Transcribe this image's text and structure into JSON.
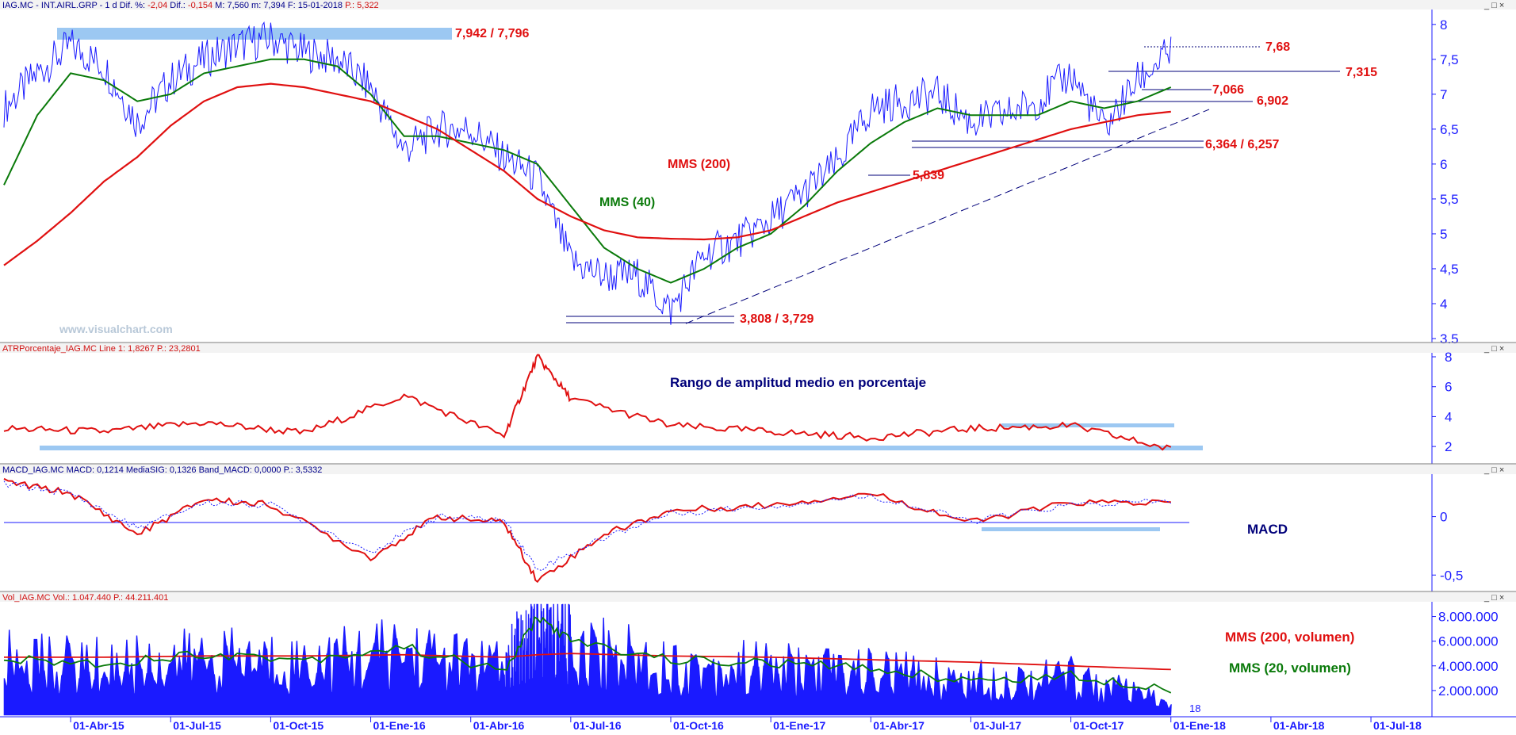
{
  "panels": {
    "price": {
      "header": {
        "segments": [
          {
            "text": "IAG.MC - INT.AIRL.GRP -  1 d  Dif. %: ",
            "color": "#00008b"
          },
          {
            "text": "-2,04",
            "color": "#d01010"
          },
          {
            "text": "  Dif.: ",
            "color": "#00008b"
          },
          {
            "text": "-0,154",
            "color": "#d01010"
          },
          {
            "text": "  M: 7,560  m: 7,394  F: 15-01-2018  ",
            "color": "#00008b"
          },
          {
            "text": "P.: 5,322",
            "color": "#d01010"
          }
        ]
      },
      "watermark": "www.visualchart.com",
      "y_ticks": [
        "8",
        "7,5",
        "7",
        "6,5",
        "6",
        "5,5",
        "5",
        "4,5",
        "4",
        "3,5"
      ],
      "annotations": {
        "resistance_top": "7,942 / 7,796",
        "high": "7,68",
        "level_7315": "7,315",
        "level_7066": "7,066",
        "level_6902": "6,902",
        "support_6364": "6,364 / 6,257",
        "support_5839": "5,839",
        "low": "3,808 / 3,729",
        "mms200": "MMS (200)",
        "mms40": "MMS (40)"
      }
    },
    "atr": {
      "header": {
        "segments": [
          {
            "text": "ATRPorcentaje_IAG.MC  Line 1: 1,8267  ",
            "color": "#d01010"
          },
          {
            "text": "P.: 23,2801",
            "color": "#d01010"
          }
        ]
      },
      "title": "Rango de amplitud medio en porcentaje",
      "y_ticks": [
        "8",
        "6",
        "4",
        "2"
      ]
    },
    "macd": {
      "header": {
        "segments": [
          {
            "text": "MACD_IAG.MC  MACD: 0,1214  MediaSIG: 0,1326  Band_MACD: 0,0000  P.: 3,5332",
            "color": "#00008b"
          }
        ]
      },
      "title": "MACD",
      "y_ticks": [
        "0",
        "-0,5"
      ]
    },
    "volume": {
      "header": {
        "segments": [
          {
            "text": "Vol_IAG.MC  Vol.: 1.047.440  P.: 44.211.401",
            "color": "#d01010"
          }
        ]
      },
      "label_mms200": "MMS (200, volumen)",
      "label_mms20": "MMS (20, volumen)",
      "y_ticks": [
        "8.000.000",
        "6.000.000",
        "4.000.000",
        "2.000.000"
      ],
      "last_bar_label": "18"
    }
  },
  "x_axis": {
    "labels": [
      "01-Abr-15",
      "01-Jul-15",
      "01-Oct-15",
      "01-Ene-16",
      "01-Abr-16",
      "01-Jul-16",
      "01-Oct-16",
      "01-Ene-17",
      "01-Abr-17",
      "01-Jul-17",
      "01-Oct-17",
      "01-Ene-18",
      "01-Abr-18",
      "01-Jul-18"
    ]
  },
  "window_controls": "_ □ ×",
  "colors": {
    "price": "#1a1aff",
    "mms200": "#e01010",
    "mms40": "#0a7a0a",
    "highlight": "#9cc8f2",
    "annotation": "#e01010",
    "axis": "#1a1aff",
    "label_dark": "#00007a"
  },
  "chart_data": [
    {
      "type": "line",
      "panel": "price",
      "ylim": [
        3.5,
        8.1
      ],
      "x": [
        "2015-02",
        "2015-03",
        "2015-04",
        "2015-05",
        "2015-06",
        "2015-07",
        "2015-08",
        "2015-09",
        "2015-10",
        "2015-11",
        "2015-12",
        "2016-01",
        "2016-02",
        "2016-03",
        "2016-04",
        "2016-05",
        "2016-06",
        "2016-07",
        "2016-08",
        "2016-09",
        "2016-10",
        "2016-11",
        "2016-12",
        "2017-01",
        "2017-02",
        "2017-03",
        "2017-04",
        "2017-05",
        "2017-06",
        "2017-07",
        "2017-08",
        "2017-09",
        "2017-10",
        "2017-11",
        "2017-12",
        "2018-01"
      ],
      "series": [
        {
          "values": [
            6.8,
            7.3,
            7.7,
            7.4,
            6.6,
            7.2,
            7.5,
            7.7,
            7.8,
            7.6,
            7.5,
            7.1,
            6.2,
            6.5,
            6.5,
            6.1,
            5.8,
            4.6,
            4.4,
            4.4,
            3.9,
            4.7,
            4.9,
            5.2,
            5.6,
            6.0,
            6.8,
            6.9,
            7.0,
            6.6,
            6.7,
            6.9,
            7.3,
            6.5,
            7.2,
            7.6
          ]
        },
        {
          "name": "MMS (40)",
          "values": [
            5.7,
            6.7,
            7.3,
            7.2,
            6.9,
            7.0,
            7.3,
            7.4,
            7.5,
            7.5,
            7.4,
            7.0,
            6.4,
            6.4,
            6.3,
            6.2,
            6.0,
            5.4,
            4.8,
            4.5,
            4.3,
            4.5,
            4.8,
            5.0,
            5.4,
            5.9,
            6.3,
            6.6,
            6.8,
            6.7,
            6.7,
            6.7,
            6.9,
            6.8,
            6.9,
            7.1
          ]
        },
        {
          "name": "MMS (200)",
          "values": [
            4.55,
            4.9,
            5.3,
            5.75,
            6.1,
            6.55,
            6.9,
            7.1,
            7.15,
            7.1,
            7.0,
            6.9,
            6.7,
            6.5,
            6.2,
            5.9,
            5.5,
            5.25,
            5.05,
            4.95,
            4.93,
            4.92,
            4.95,
            5.05,
            5.25,
            5.45,
            5.6,
            5.75,
            5.9,
            6.05,
            6.2,
            6.35,
            6.5,
            6.6,
            6.7,
            6.75
          ]
        }
      ]
    },
    {
      "type": "line",
      "panel": "atr",
      "ylim": [
        1,
        8
      ],
      "x": [
        "2015-02",
        "2015-05",
        "2015-08",
        "2015-11",
        "2016-02",
        "2016-05",
        "2016-06",
        "2016-07",
        "2016-10",
        "2017-01",
        "2017-04",
        "2017-07",
        "2017-10",
        "2018-01"
      ],
      "series": [
        {
          "values": [
            3.2,
            3.0,
            3.6,
            2.9,
            5.4,
            2.7,
            8.0,
            5.2,
            3.4,
            3.0,
            2.6,
            3.2,
            3.4,
            1.8
          ]
        }
      ]
    },
    {
      "type": "line",
      "panel": "macd",
      "ylim": [
        -0.6,
        0.35
      ],
      "x": [
        "2015-02",
        "2015-04",
        "2015-06",
        "2015-08",
        "2015-10",
        "2016-01",
        "2016-03",
        "2016-05",
        "2016-06",
        "2016-08",
        "2016-10",
        "2017-01",
        "2017-04",
        "2017-07",
        "2017-10",
        "2018-01"
      ],
      "series": [
        {
          "name": "MACD",
          "values": [
            0.3,
            0.2,
            -0.15,
            0.15,
            0.1,
            -0.35,
            0.0,
            -0.05,
            -0.55,
            -0.15,
            0.05,
            0.1,
            0.2,
            -0.05,
            0.12,
            0.12
          ]
        },
        {
          "name": "MediaSIG",
          "values": [
            0.28,
            0.2,
            -0.1,
            0.12,
            0.1,
            -0.3,
            0.0,
            -0.03,
            -0.45,
            -0.18,
            0.03,
            0.09,
            0.18,
            -0.04,
            0.1,
            0.13
          ]
        }
      ]
    },
    {
      "type": "bar",
      "panel": "volume",
      "ylim": [
        0,
        9000000
      ],
      "x": [
        "2015-02",
        "2015-05",
        "2015-08",
        "2015-11",
        "2016-02",
        "2016-05",
        "2016-06",
        "2016-07",
        "2016-10",
        "2017-01",
        "2017-04",
        "2017-07",
        "2017-10",
        "2018-01"
      ],
      "series": [
        {
          "name": "Vol",
          "values": [
            5000000,
            4500000,
            5200000,
            4800000,
            5800000,
            4200000,
            9000000,
            6500000,
            4500000,
            4300000,
            4000000,
            3200000,
            3500000,
            1047440
          ]
        },
        {
          "name": "MMS (200, volumen)",
          "values": [
            4700000,
            4700000,
            4800000,
            4800000,
            4900000,
            4700000,
            4900000,
            5000000,
            4800000,
            4700000,
            4500000,
            4300000,
            4000000,
            3700000
          ]
        },
        {
          "name": "MMS (20, volumen)",
          "values": [
            4500000,
            4200000,
            5000000,
            4500000,
            5500000,
            3500000,
            8000000,
            6000000,
            4500000,
            4200000,
            3800000,
            2800000,
            3200000,
            2200000
          ]
        }
      ]
    }
  ]
}
